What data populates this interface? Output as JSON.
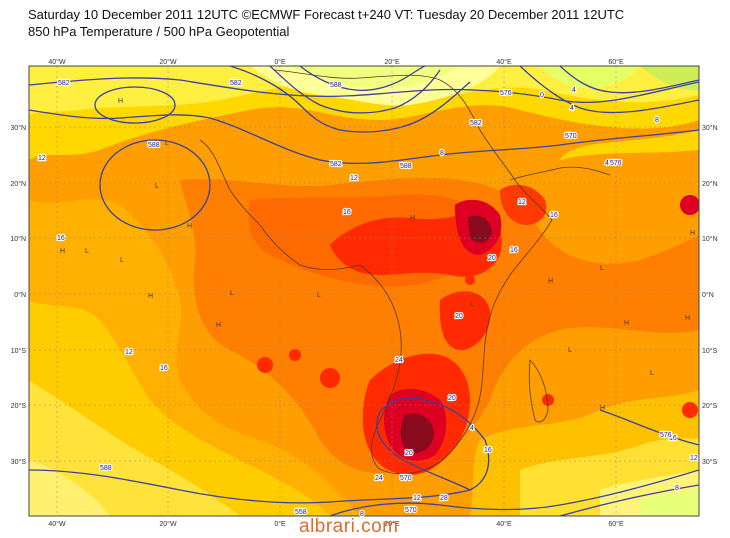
{
  "header": {
    "line1": "Saturday 10 December 2011 12UTC ©ECMWF Forecast t+240 VT: Tuesday 20 December 2011 12UTC",
    "line2": "850 hPa Temperature / 500 hPa Geopotential"
  },
  "axes": {
    "lon_labels": [
      "40°W",
      "20°W",
      "0°E",
      "20°E",
      "40°E",
      "60°E"
    ],
    "lat_labels": [
      "30°N",
      "20°N",
      "10°N",
      "0°N",
      "10°S",
      "20°S",
      "30°S"
    ]
  },
  "temperature_contour_labels": [
    "12",
    "16",
    "12",
    "16",
    "16",
    "12",
    "8",
    "4",
    "0",
    "4",
    "4",
    "8",
    "12",
    "16",
    "20",
    "16",
    "20",
    "24",
    "20",
    "20",
    "24",
    "28",
    "16",
    "12",
    "8",
    "4",
    "16",
    "12",
    "8"
  ],
  "geopotential_contour_labels": [
    "582",
    "588",
    "582",
    "588",
    "576",
    "570",
    "576",
    "582",
    "588",
    "582",
    "588",
    "576",
    "570",
    "558",
    "570"
  ],
  "pressure_centers": [
    "H",
    "L",
    "H",
    "L",
    "L",
    "H",
    "L",
    "H",
    "L",
    "H",
    "L",
    "H",
    "H",
    "L",
    "H",
    "L",
    "H",
    "L",
    "H",
    "H",
    "L",
    "H"
  ],
  "colors": {
    "sea_yellow": "#ffd200",
    "temp_pale": "#ffff99",
    "temp_light_green": "#d7f07a",
    "temp_yellow": "#ffe600",
    "temp_orange_light": "#ffad00",
    "temp_orange": "#ff7a00",
    "temp_red": "#ff2a00",
    "temp_crimson": "#dd0022",
    "temp_dark": "#8a0a1e",
    "contour": "#3b40a0",
    "watermark": "#e46a2a"
  },
  "watermark": "albrari.com"
}
